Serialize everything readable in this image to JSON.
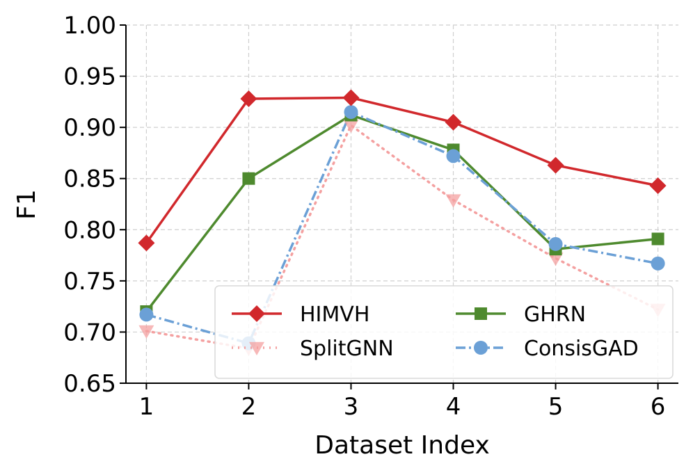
{
  "chart_data": {
    "type": "line",
    "xlabel": "Dataset Index",
    "ylabel": "F1",
    "x": [
      1,
      2,
      3,
      4,
      5,
      6
    ],
    "x_tick_labels": [
      "1",
      "2",
      "3",
      "4",
      "5",
      "6"
    ],
    "xlim": [
      0.8,
      6.2
    ],
    "ylim": [
      0.65,
      1.0
    ],
    "y_ticks": [
      0.65,
      0.7,
      0.75,
      0.8,
      0.85,
      0.9,
      0.95,
      1.0
    ],
    "y_tick_labels": [
      "0.65",
      "0.70",
      "0.75",
      "0.80",
      "0.85",
      "0.90",
      "0.95",
      "1.00"
    ],
    "grid": true,
    "legend_position": "lower-right",
    "series": [
      {
        "name": "SplitGNN",
        "values": [
          0.701,
          0.684,
          0.902,
          0.829,
          0.772,
          0.722
        ],
        "color": "#f4a0a0",
        "marker": "triangle-down",
        "line_style": "dotted"
      },
      {
        "name": "GHRN",
        "values": [
          0.72,
          0.85,
          0.912,
          0.878,
          0.781,
          0.791
        ],
        "color": "#4e8a2e",
        "marker": "square",
        "line_style": "solid"
      },
      {
        "name": "ConsisGAD",
        "values": [
          0.717,
          0.689,
          0.915,
          0.872,
          0.786,
          0.767
        ],
        "color": "#6ba0d6",
        "marker": "circle",
        "line_style": "dashdot"
      },
      {
        "name": "HIMVH",
        "values": [
          0.787,
          0.928,
          0.929,
          0.905,
          0.863,
          0.843
        ],
        "color": "#d1282c",
        "marker": "diamond",
        "line_style": "solid"
      }
    ],
    "legend_order": [
      "HIMVH",
      "GHRN",
      "SplitGNN",
      "ConsisGAD"
    ]
  }
}
